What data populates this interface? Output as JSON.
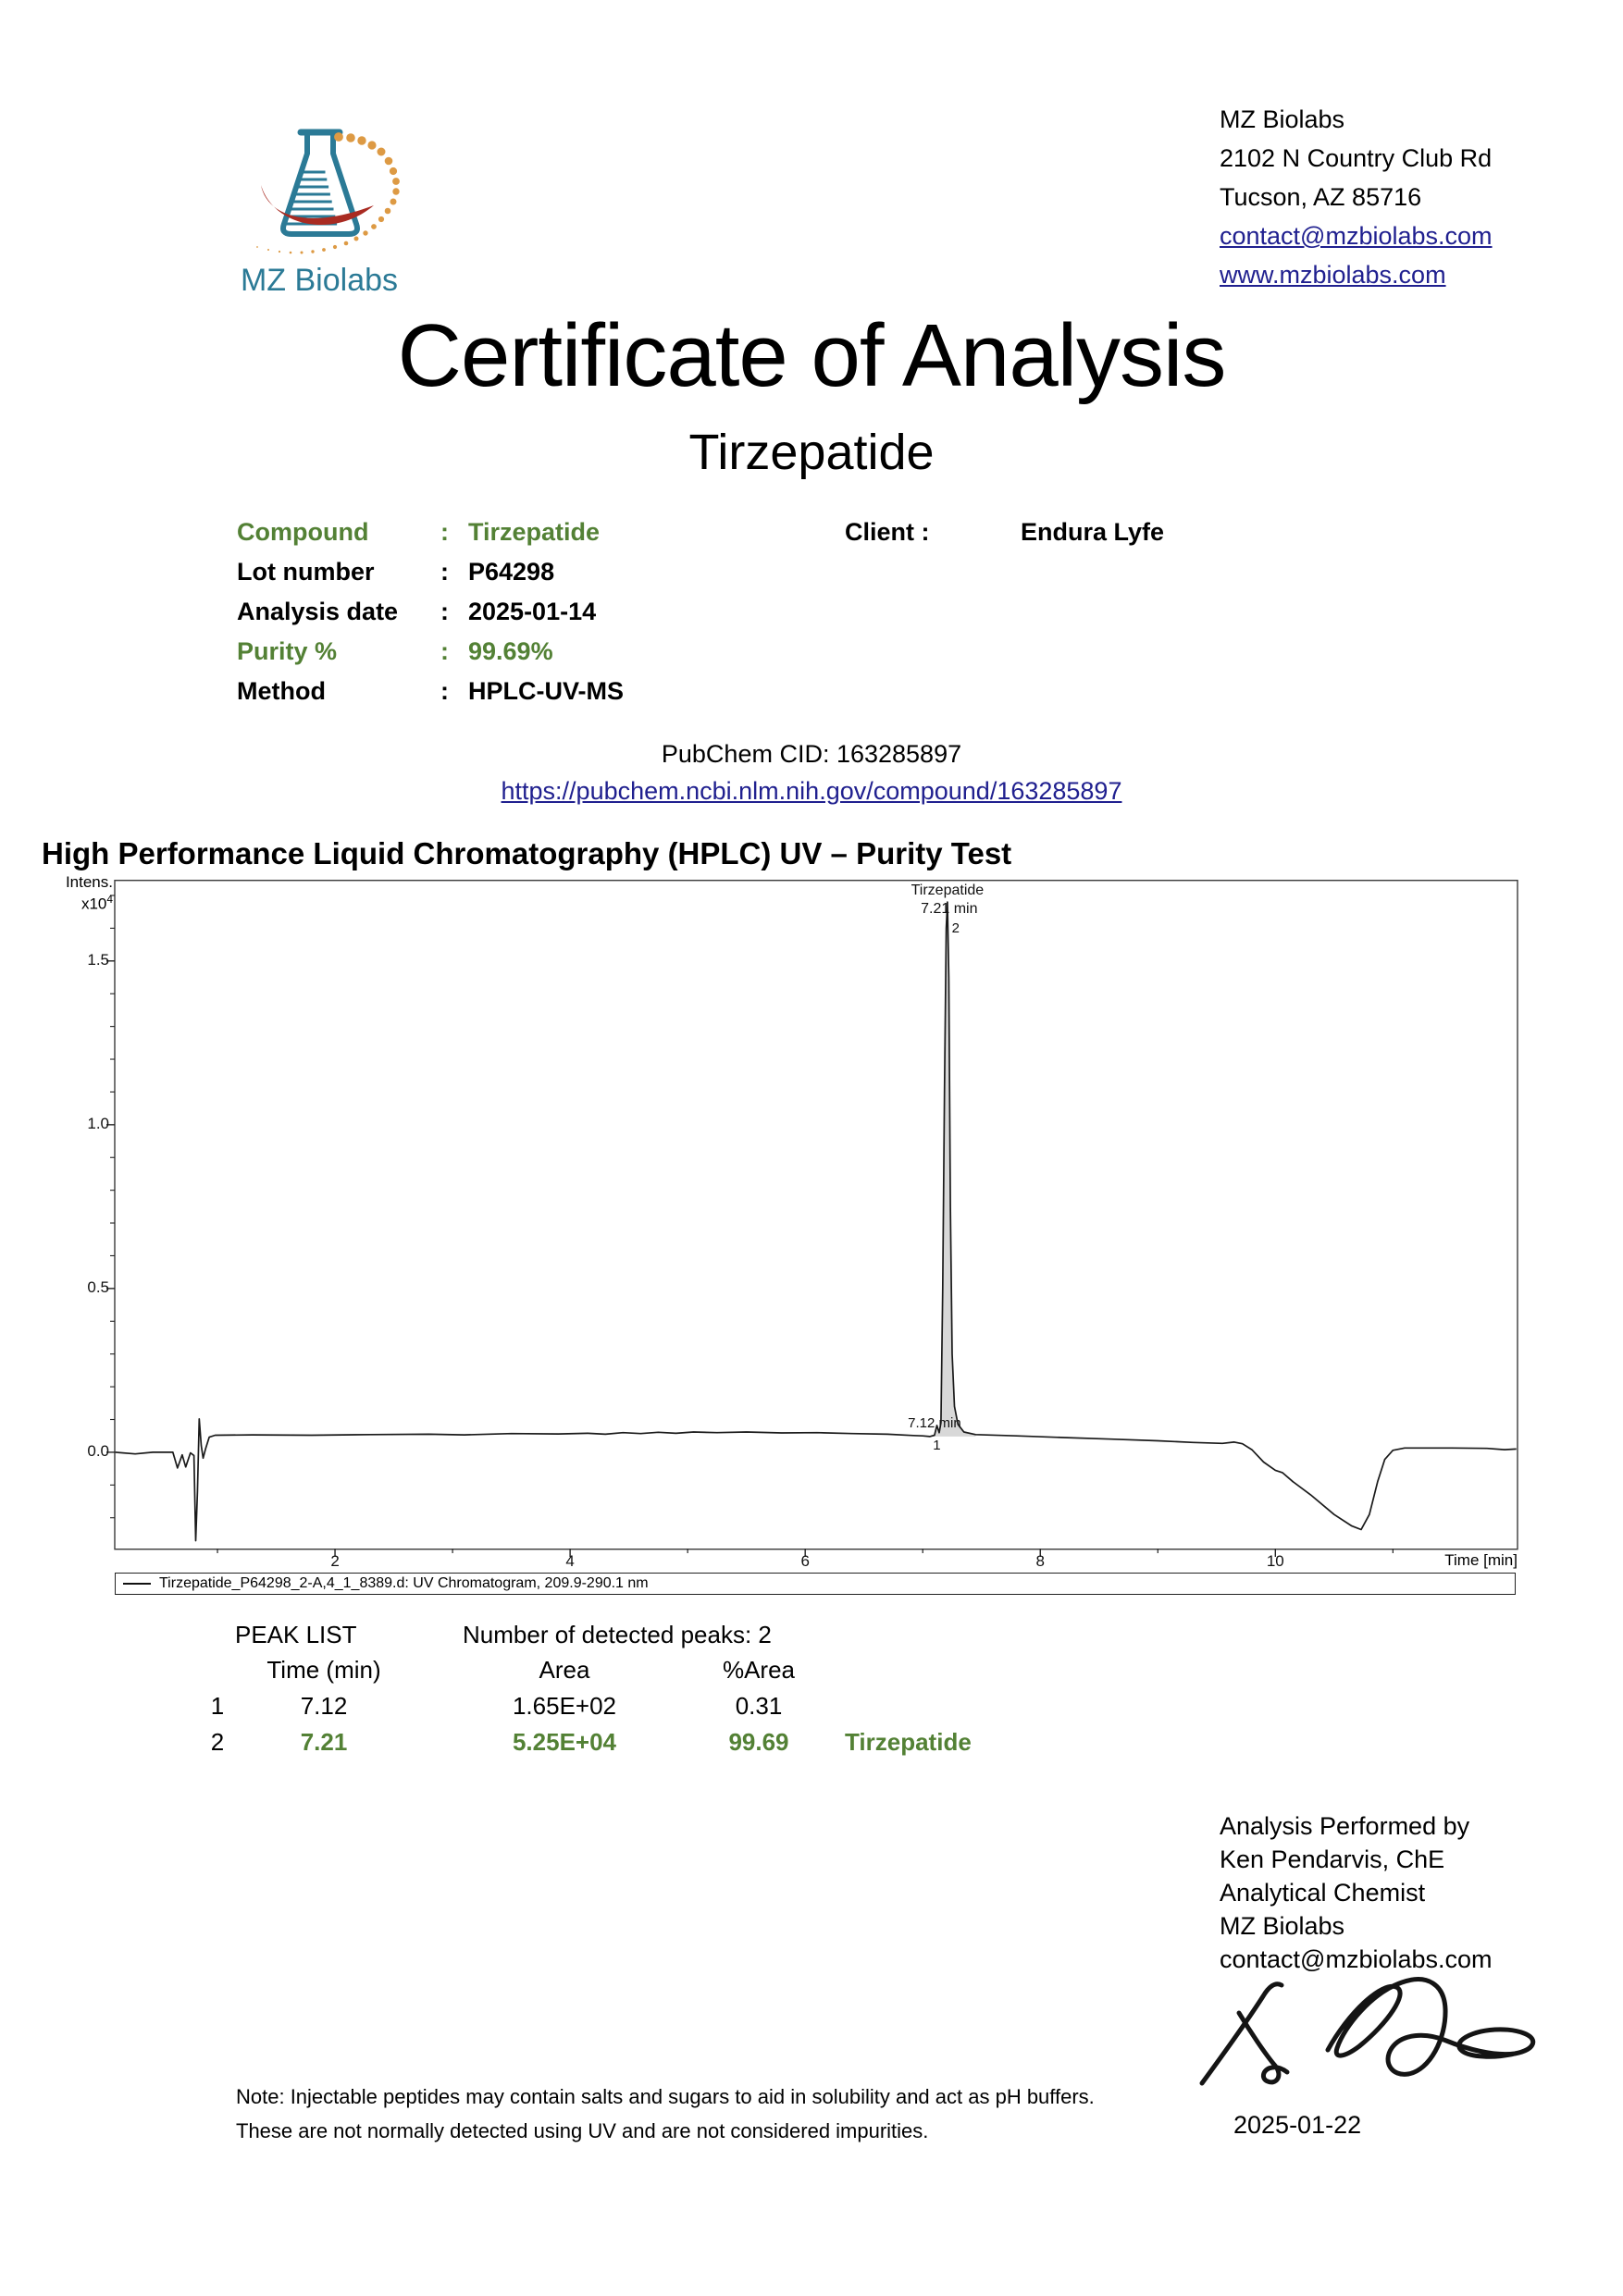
{
  "letterhead": {
    "lines": [
      "MZ Biolabs",
      "2102 N Country Club Rd",
      "Tucson, AZ 85716"
    ],
    "links": [
      "contact@mzbiolabs.com",
      "www.mzbiolabs.com"
    ]
  },
  "logo": {
    "text": "MZ Biolabs"
  },
  "title": "Certificate of Analysis",
  "subtitle": "Tirzepatide",
  "info": {
    "rows": [
      {
        "label": "Compound",
        "colon": ":",
        "value": "Tirzepatide"
      },
      {
        "label": "Lot number",
        "colon": ":",
        "value": "P64298"
      },
      {
        "label": "Analysis date",
        "colon": ":",
        "value": "2025-01-14"
      },
      {
        "label": "Purity %",
        "colon": ":",
        "value": "99.69%"
      },
      {
        "label": "Method",
        "colon": ":",
        "value": "HPLC-UV-MS"
      }
    ],
    "client_label": "Client :",
    "client_value": "Endura Lyfe"
  },
  "pubchem": {
    "cid_line": "PubChem CID: 163285897",
    "url": "https://pubchem.ncbi.nlm.nih.gov/compound/163285897"
  },
  "section_heading": "High Performance Liquid Chromatography (HPLC) UV – Purity Test",
  "chart_data": {
    "type": "line",
    "title": "",
    "ylabel_line1": "Intens.",
    "ylabel_line2": "x10",
    "ylabel_exponent": "4",
    "xlabel": "Time [min]",
    "xlim": [
      0.126,
      12.06
    ],
    "ylim": [
      -0.294,
      1.748
    ],
    "x_ticks": [
      2,
      4,
      6,
      8,
      10
    ],
    "x_minor_ticks": [
      1,
      3,
      5,
      7,
      9,
      11
    ],
    "y_ticks": [
      0.0,
      0.5,
      1.0,
      1.5
    ],
    "y_minor_step": 0.1,
    "grid": false,
    "legend_position": "bottom",
    "legend": "Tirzepatide_P64298_2-A,4_1_8389.d: UV Chromatogram, 209.9-290.1 nm",
    "annotations": [
      {
        "text": "Tirzepatide",
        "t": 7.21,
        "y": 16,
        "anchor": "middle",
        "size": 16
      },
      {
        "text": "7.21 min",
        "t": 7.225,
        "y": 36,
        "anchor": "middle",
        "size": 16
      },
      {
        "text": "2",
        "t": 7.28,
        "y": 57,
        "anchor": "middle",
        "size": 15
      },
      {
        "text": "7.12 min",
        "t": 7.1,
        "y": 592,
        "anchor": "middle",
        "size": 15
      },
      {
        "text": "1",
        "t": 7.12,
        "y": 616,
        "anchor": "middle",
        "size": 15
      }
    ],
    "peak_fill_range": [
      7.06,
      7.46
    ],
    "peak_fill_baseline": 0.048,
    "series": [
      {
        "name": "UV Chromatogram 209.9-290.1 nm",
        "points": [
          [
            0.13,
            0
          ],
          [
            0.3,
            -0.005
          ],
          [
            0.45,
            0
          ],
          [
            0.62,
            0
          ],
          [
            0.66,
            -0.048
          ],
          [
            0.7,
            -0.008
          ],
          [
            0.73,
            -0.045
          ],
          [
            0.77,
            -0.002
          ],
          [
            0.8,
            -0.01
          ],
          [
            0.815,
            -0.27
          ],
          [
            0.83,
            -0.12
          ],
          [
            0.845,
            0.102
          ],
          [
            0.862,
            0.02
          ],
          [
            0.878,
            -0.018
          ],
          [
            0.9,
            0.012
          ],
          [
            0.93,
            0.046
          ],
          [
            0.98,
            0.052
          ],
          [
            1.3,
            0.053
          ],
          [
            1.8,
            0.052
          ],
          [
            2.3,
            0.054
          ],
          [
            2.8,
            0.055
          ],
          [
            3.1,
            0.053
          ],
          [
            3.5,
            0.057
          ],
          [
            3.9,
            0.056
          ],
          [
            4.15,
            0.058
          ],
          [
            4.3,
            0.055
          ],
          [
            4.45,
            0.06
          ],
          [
            4.6,
            0.057
          ],
          [
            4.75,
            0.061
          ],
          [
            4.9,
            0.058
          ],
          [
            5.05,
            0.062
          ],
          [
            5.25,
            0.06
          ],
          [
            5.5,
            0.062
          ],
          [
            5.8,
            0.059
          ],
          [
            6.1,
            0.06
          ],
          [
            6.4,
            0.057
          ],
          [
            6.7,
            0.055
          ],
          [
            6.92,
            0.051
          ],
          [
            7.0,
            0.05
          ],
          [
            7.06,
            0.048
          ],
          [
            7.1,
            0.052
          ],
          [
            7.12,
            0.082
          ],
          [
            7.14,
            0.06
          ],
          [
            7.155,
            0.09
          ],
          [
            7.17,
            0.5
          ],
          [
            7.185,
            1.1
          ],
          [
            7.2,
            1.6
          ],
          [
            7.21,
            1.68
          ],
          [
            7.222,
            1.45
          ],
          [
            7.235,
            0.75
          ],
          [
            7.25,
            0.3
          ],
          [
            7.27,
            0.14
          ],
          [
            7.3,
            0.085
          ],
          [
            7.35,
            0.062
          ],
          [
            7.45,
            0.054
          ],
          [
            7.8,
            0.05
          ],
          [
            8.2,
            0.045
          ],
          [
            8.6,
            0.04
          ],
          [
            9.0,
            0.035
          ],
          [
            9.3,
            0.03
          ],
          [
            9.55,
            0.027
          ],
          [
            9.65,
            0.031
          ],
          [
            9.72,
            0.026
          ],
          [
            9.8,
            0.008
          ],
          [
            9.9,
            -0.03
          ],
          [
            10.0,
            -0.055
          ],
          [
            10.06,
            -0.062
          ],
          [
            10.15,
            -0.09
          ],
          [
            10.3,
            -0.13
          ],
          [
            10.5,
            -0.19
          ],
          [
            10.65,
            -0.225
          ],
          [
            10.73,
            -0.236
          ],
          [
            10.8,
            -0.19
          ],
          [
            10.87,
            -0.09
          ],
          [
            10.93,
            -0.022
          ],
          [
            11.0,
            0.006
          ],
          [
            11.1,
            0.013
          ],
          [
            11.5,
            0.013
          ],
          [
            11.8,
            0.012
          ],
          [
            11.95,
            0.008
          ],
          [
            12.05,
            0.01
          ]
        ]
      }
    ]
  },
  "peak_table": {
    "title": "PEAK LIST",
    "count_line": "Number of detected peaks: 2",
    "headers": [
      "",
      "Time (min)",
      "Area",
      "%Area",
      ""
    ],
    "rows": [
      {
        "cells": [
          "1",
          "7.12",
          "1.65E+02",
          "0.31",
          ""
        ]
      },
      {
        "cells": [
          "2",
          "7.21",
          "5.25E+04",
          "99.69",
          "Tirzepatide"
        ]
      }
    ]
  },
  "analyst": {
    "lines": [
      "Analysis Performed by",
      "Ken Pendarvis, ChE",
      "Analytical Chemist",
      "MZ Biolabs",
      "contact@mzbiolabs.com"
    ]
  },
  "signature_date": "2025-01-22",
  "note_lines": [
    "Note: Injectable peptides may contain salts and sugars to aid in solubility and act as pH buffers.",
    "These are not normally detected using UV and are not considered impurities."
  ],
  "colors": {
    "accent_green": "#538135",
    "link_navy": "#20208f",
    "logo_teal": "#2b7a96",
    "logo_red": "#a92b22",
    "logo_orange": "#dd9a44",
    "peak_fill_gray": "#d8d8d8"
  }
}
